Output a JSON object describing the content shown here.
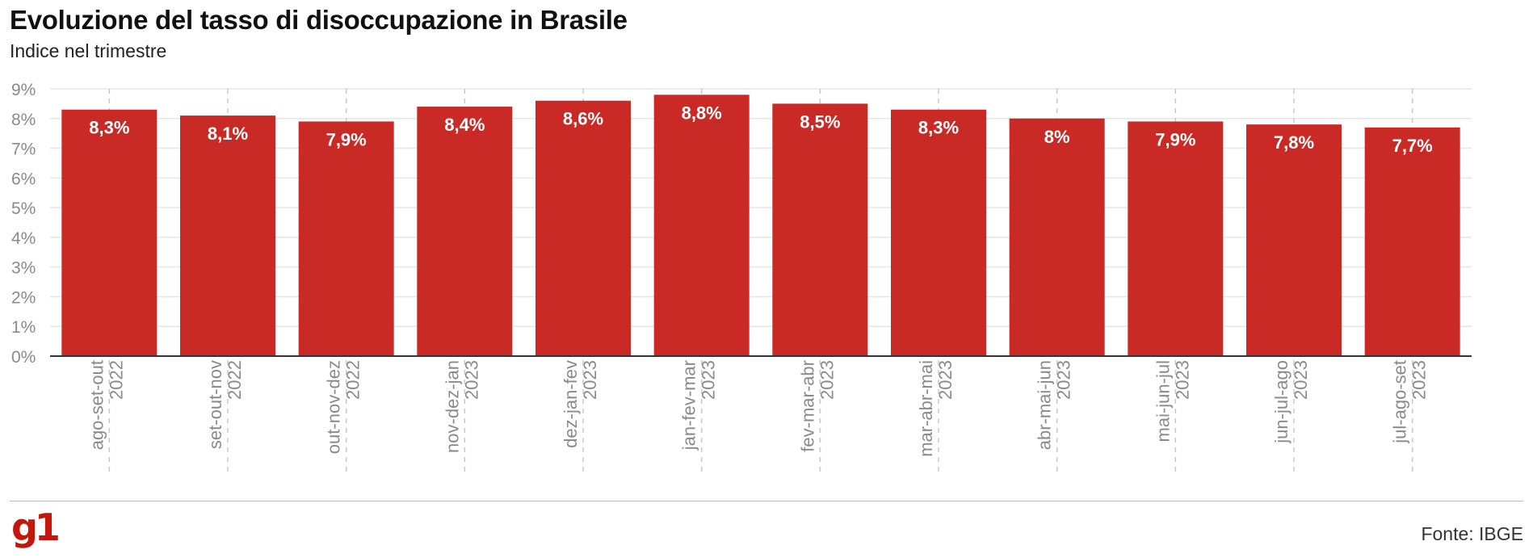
{
  "title": "Evoluzione del tasso di disoccupazione in Brasile",
  "subtitle": "Indice nel trimestre",
  "source": "Fonte: IBGE",
  "logo": "g1",
  "colors": {
    "bar": "#c92a25",
    "label": "#ffffff",
    "axis_text": "#8a8a8a",
    "grid": "#e6e6e6",
    "baseline": "#333333"
  },
  "chart_data": {
    "type": "bar",
    "title": "Evoluzione del tasso di disoccupazione in Brasile",
    "subtitle": "Indice nel trimestre",
    "categories": [
      {
        "period": "ago-set-out",
        "year": "2022"
      },
      {
        "period": "set-out-nov",
        "year": "2022"
      },
      {
        "period": "out-nov-dez",
        "year": "2022"
      },
      {
        "period": "nov-dez-jan",
        "year": "2023"
      },
      {
        "period": "dez-jan-fev",
        "year": "2023"
      },
      {
        "period": "jan-fev-mar",
        "year": "2023"
      },
      {
        "period": "fev-mar-abr",
        "year": "2023"
      },
      {
        "period": "mar-abr-mai",
        "year": "2023"
      },
      {
        "period": "abr-mai-jun",
        "year": "2023"
      },
      {
        "period": "mai-jun-jul",
        "year": "2023"
      },
      {
        "period": "jun-jul-ago",
        "year": "2023"
      },
      {
        "period": "jul-ago-set",
        "year": "2023"
      }
    ],
    "values": [
      8.3,
      8.1,
      7.9,
      8.4,
      8.6,
      8.8,
      8.5,
      8.3,
      8.0,
      7.9,
      7.8,
      7.7
    ],
    "value_labels": [
      "8,3%",
      "8,1%",
      "7,9%",
      "8,4%",
      "8,6%",
      "8,8%",
      "8,5%",
      "8,3%",
      "8%",
      "7,9%",
      "7,8%",
      "7,7%"
    ],
    "y_ticks": [
      "0%",
      "1%",
      "2%",
      "3%",
      "4%",
      "5%",
      "6%",
      "7%",
      "8%",
      "9%"
    ],
    "ylim": [
      0,
      9
    ],
    "grid": true,
    "xlabel": "",
    "ylabel": ""
  }
}
